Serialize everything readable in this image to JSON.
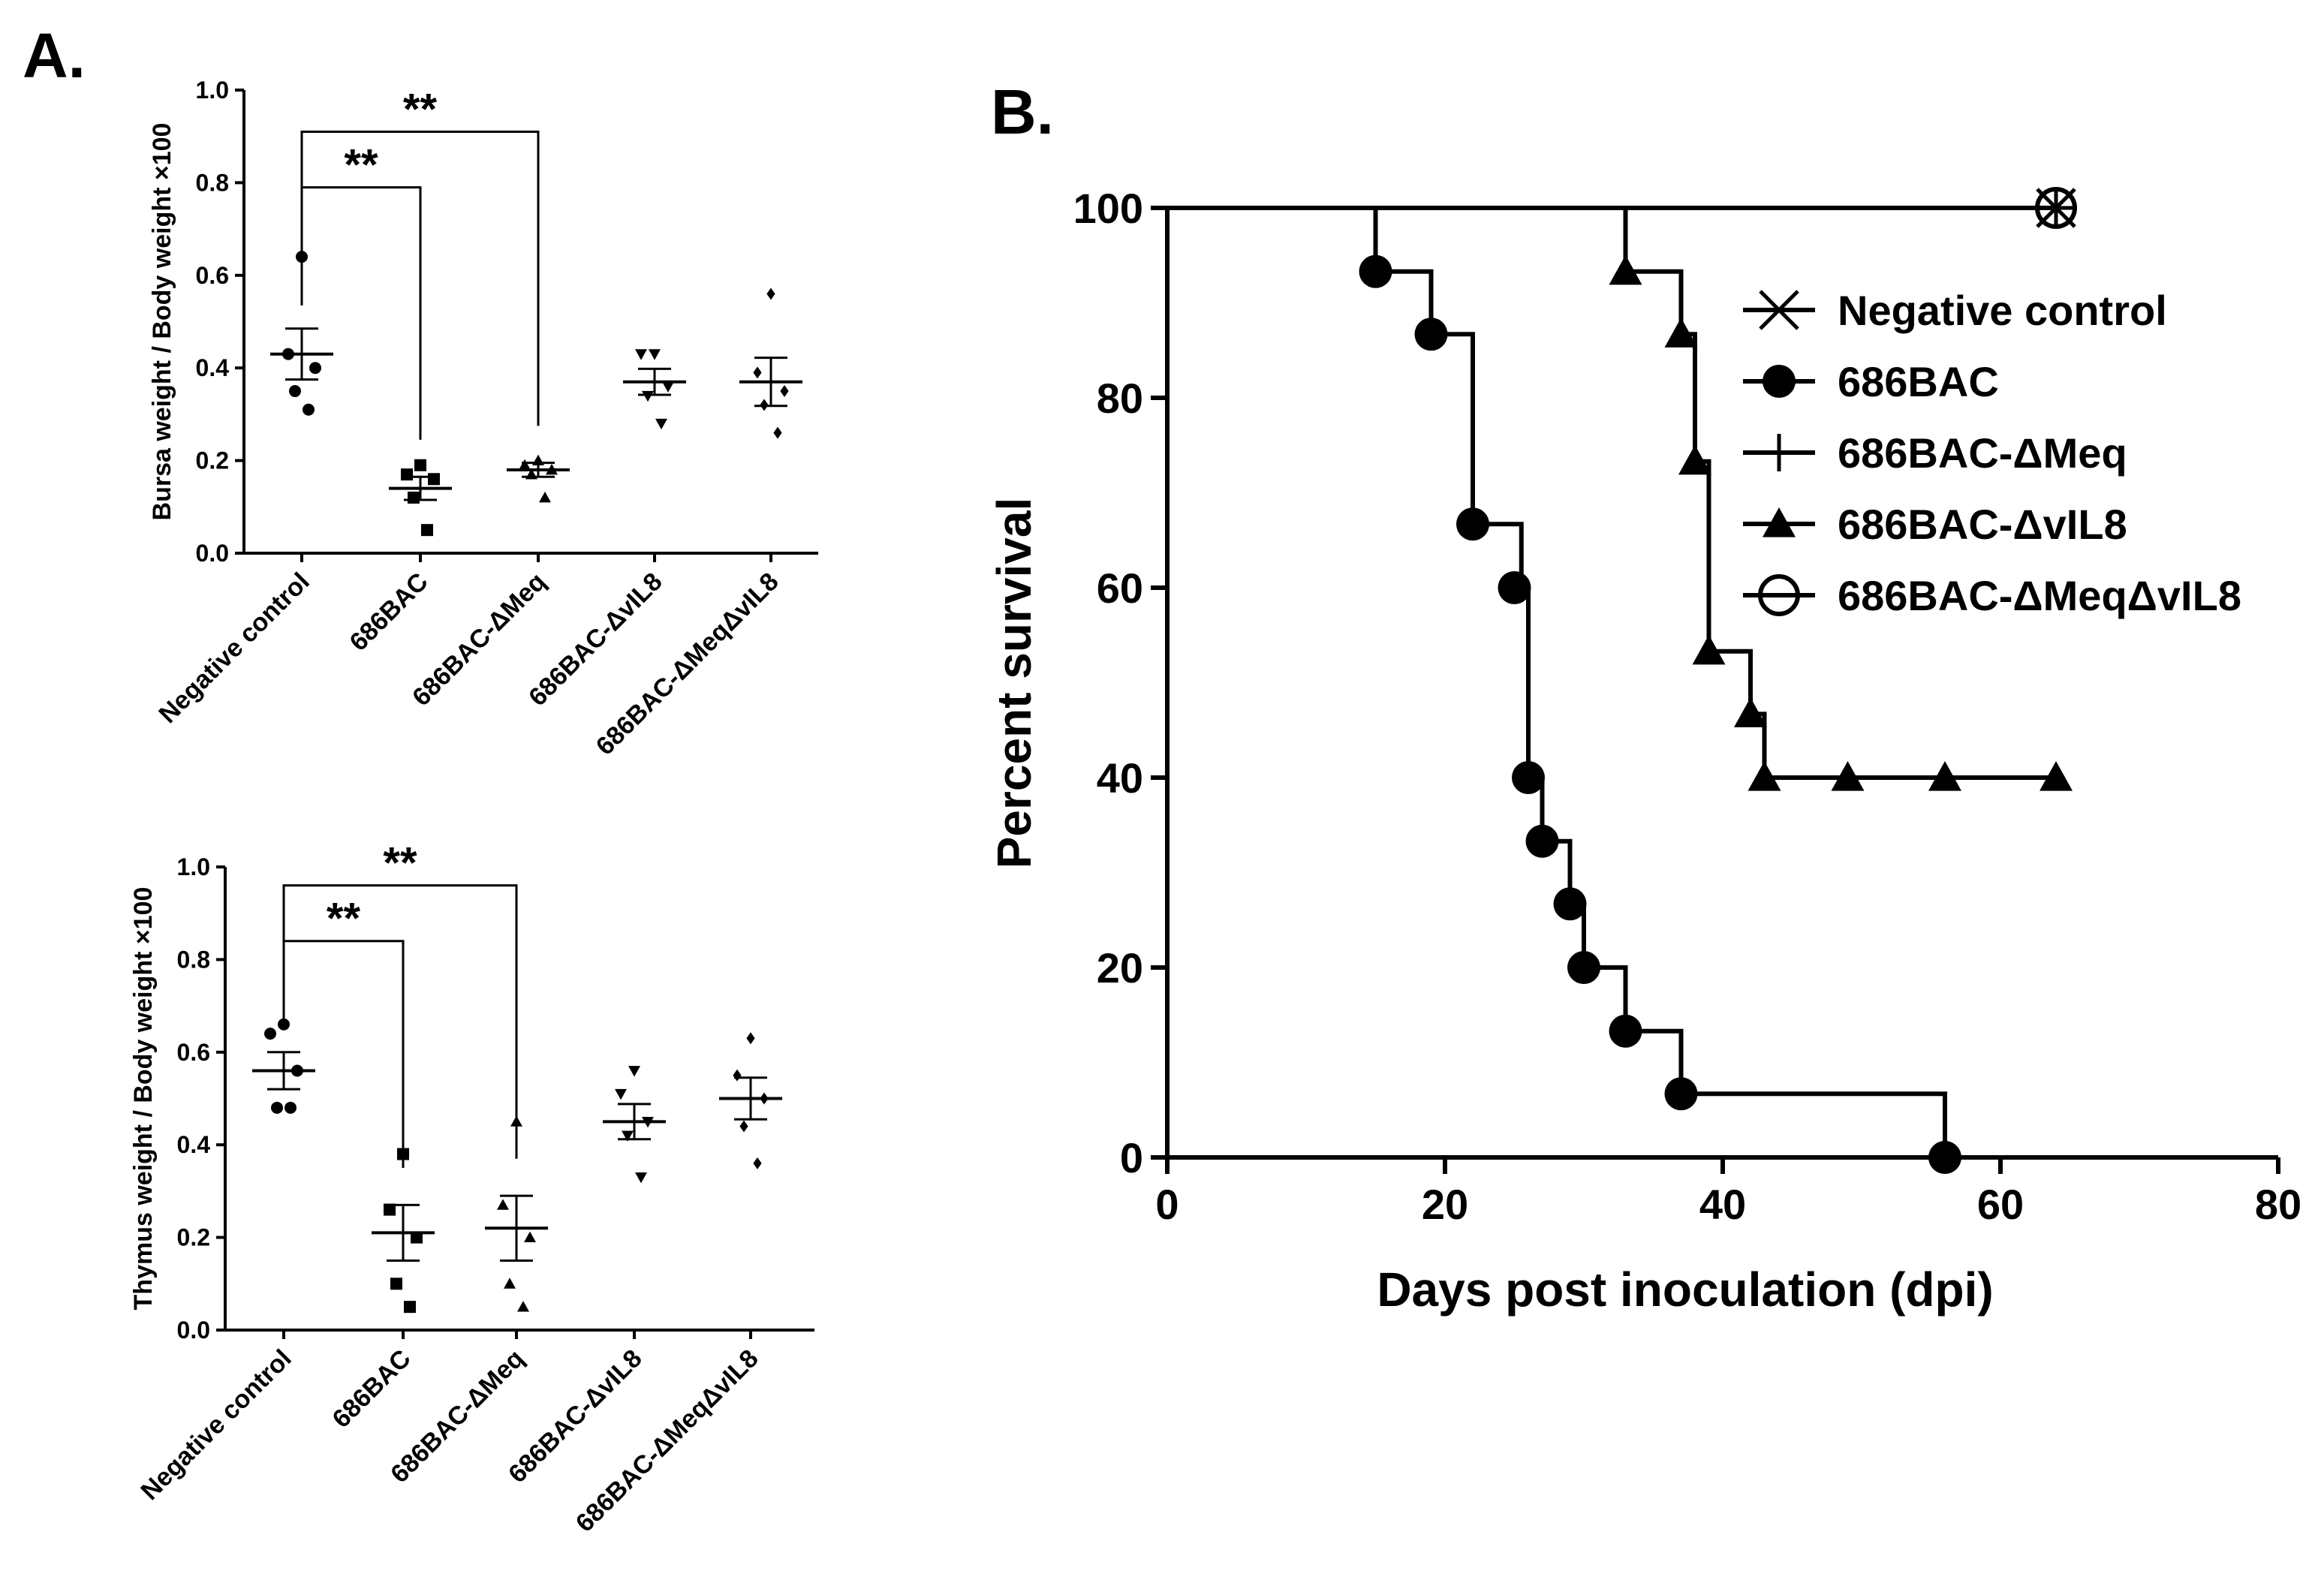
{
  "panel_labels": {
    "a": "A.",
    "b": "B."
  },
  "chart_data": [
    {
      "type": "scatter",
      "id": "bursa",
      "ylabel": "Bursa weight / Body weight ×100",
      "xlabel": "",
      "ylim": [
        0,
        1.0
      ],
      "yticks": [
        "0.0",
        "0.2",
        "0.4",
        "0.6",
        "0.8",
        "1.0"
      ],
      "categories": [
        "Negative control",
        "686BAC",
        "686BAC-ΔMeq",
        "686BAC-ΔvIL8",
        "686BAC-ΔMeqΔvIL8"
      ],
      "markers": [
        "circle",
        "square",
        "triangle",
        "down-triangle",
        "diamond"
      ],
      "points": [
        [
          0.64,
          0.43,
          0.4,
          0.35,
          0.31
        ],
        [
          0.19,
          0.17,
          0.16,
          0.12,
          0.05
        ],
        [
          0.2,
          0.19,
          0.18,
          0.17,
          0.12
        ],
        [
          0.43,
          0.43,
          0.36,
          0.34,
          0.28
        ],
        [
          0.56,
          0.39,
          0.35,
          0.32,
          0.26
        ]
      ],
      "mean": [
        0.43,
        0.14,
        0.18,
        0.37,
        0.37
      ],
      "sem": [
        0.055,
        0.025,
        0.015,
        0.028,
        0.052
      ],
      "significance": [
        {
          "from": 0,
          "to": 1,
          "label": "**",
          "y": 0.79
        },
        {
          "from": 0,
          "to": 2,
          "label": "**",
          "y": 0.91
        }
      ]
    },
    {
      "type": "scatter",
      "id": "thymus",
      "ylabel": "Thymus weight / Body weight ×100",
      "xlabel": "",
      "ylim": [
        0,
        1.0
      ],
      "yticks": [
        "0.0",
        "0.2",
        "0.4",
        "0.6",
        "0.8",
        "1.0"
      ],
      "categories": [
        "Negative control",
        "686BAC",
        "686BAC-ΔMeq",
        "686BAC-ΔvIL8",
        "686BAC-ΔMeqΔvIL8"
      ],
      "markers": [
        "circle",
        "square",
        "triangle",
        "down-triangle",
        "diamond"
      ],
      "points": [
        [
          0.66,
          0.64,
          0.56,
          0.48,
          0.48
        ],
        [
          0.38,
          0.26,
          0.2,
          0.1,
          0.05
        ],
        [
          0.45,
          0.27,
          0.2,
          0.1,
          0.05
        ],
        [
          0.56,
          0.51,
          0.45,
          0.42,
          0.33
        ],
        [
          0.63,
          0.55,
          0.5,
          0.44,
          0.36
        ]
      ],
      "mean": [
        0.56,
        0.21,
        0.22,
        0.45,
        0.5
      ],
      "sem": [
        0.04,
        0.06,
        0.07,
        0.038,
        0.045
      ],
      "significance": [
        {
          "from": 0,
          "to": 1,
          "label": "**",
          "y": 0.84
        },
        {
          "from": 0,
          "to": 2,
          "label": "**",
          "y": 0.96
        }
      ]
    },
    {
      "type": "line",
      "id": "survival",
      "title": "",
      "xlabel": "Days post inoculation (dpi)",
      "ylabel": "Percent survival",
      "xlim": [
        0,
        80
      ],
      "ylim": [
        0,
        100
      ],
      "xticks": [
        0,
        20,
        40,
        60,
        80
      ],
      "yticks": [
        0,
        20,
        40,
        60,
        80,
        100
      ],
      "legend_position": "top-right",
      "series": [
        {
          "name": "Negative control",
          "marker": "x",
          "steps": [
            [
              0,
              100
            ],
            [
              64,
              100
            ]
          ],
          "marks": [
            [
              64,
              100
            ]
          ]
        },
        {
          "name": "686BAC",
          "marker": "circle",
          "steps": [
            [
              0,
              100
            ],
            [
              15,
              100
            ],
            [
              15,
              93.3
            ],
            [
              19,
              93.3
            ],
            [
              19,
              86.7
            ],
            [
              22,
              86.7
            ],
            [
              22,
              66.7
            ],
            [
              25.5,
              66.7
            ],
            [
              25.5,
              60
            ],
            [
              26,
              60
            ],
            [
              26,
              40
            ],
            [
              27,
              40
            ],
            [
              27,
              33.3
            ],
            [
              29,
              33.3
            ],
            [
              29,
              26.7
            ],
            [
              30,
              26.7
            ],
            [
              30,
              20
            ],
            [
              33,
              20
            ],
            [
              33,
              13.3
            ],
            [
              37,
              13.3
            ],
            [
              37,
              6.7
            ],
            [
              56,
              6.7
            ],
            [
              56,
              0
            ]
          ],
          "marks": [
            [
              15,
              93.3
            ],
            [
              19,
              86.7
            ],
            [
              22,
              66.7
            ],
            [
              25,
              60
            ],
            [
              26,
              40
            ],
            [
              27,
              33.3
            ],
            [
              29,
              26.7
            ],
            [
              30,
              20
            ],
            [
              33,
              13.3
            ],
            [
              37,
              6.7
            ],
            [
              56,
              0
            ]
          ]
        },
        {
          "name": "686BAC-ΔMeq",
          "marker": "plus",
          "steps": [
            [
              0,
              100
            ],
            [
              64,
              100
            ]
          ],
          "marks": [
            [
              64,
              100
            ]
          ]
        },
        {
          "name": "686BAC-ΔvIL8",
          "marker": "triangle",
          "steps": [
            [
              0,
              100
            ],
            [
              33,
              100
            ],
            [
              33,
              93.3
            ],
            [
              37,
              93.3
            ],
            [
              37,
              86.7
            ],
            [
              38,
              86.7
            ],
            [
              38,
              73.3
            ],
            [
              39,
              73.3
            ],
            [
              39,
              53.3
            ],
            [
              42,
              53.3
            ],
            [
              42,
              46.7
            ],
            [
              43,
              46.7
            ],
            [
              43,
              40
            ],
            [
              64,
              40
            ]
          ],
          "marks": [
            [
              33,
              93.3
            ],
            [
              37,
              86.7
            ],
            [
              38,
              73.3
            ],
            [
              39,
              53.3
            ],
            [
              42,
              46.7
            ],
            [
              43,
              40
            ],
            [
              49,
              40
            ],
            [
              56,
              40
            ],
            [
              64,
              40
            ]
          ]
        },
        {
          "name": "686BAC-ΔMeqΔvIL8",
          "marker": "open-circle",
          "steps": [
            [
              0,
              100
            ],
            [
              64,
              100
            ]
          ],
          "marks": [
            [
              64,
              100
            ]
          ]
        }
      ]
    }
  ]
}
